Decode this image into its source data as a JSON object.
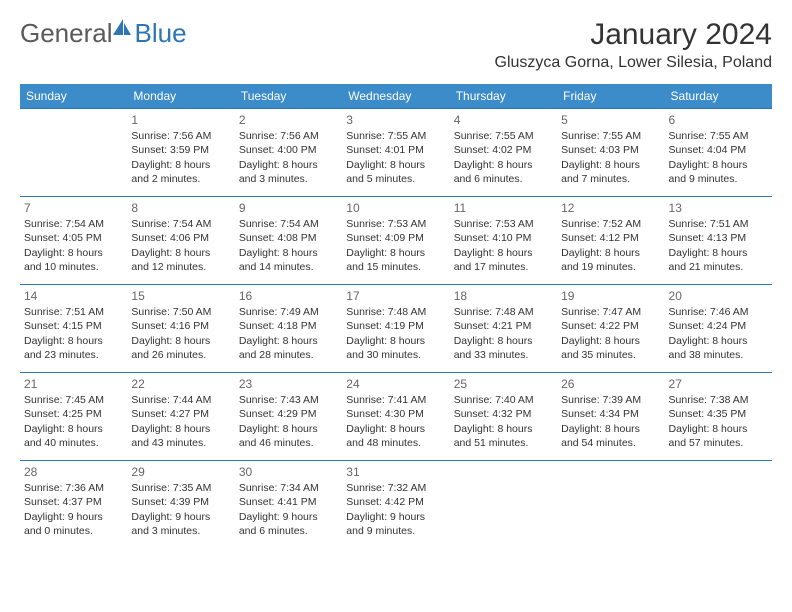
{
  "logo": {
    "text1": "General",
    "text2": "Blue"
  },
  "title": "January 2024",
  "location": "Gluszyca Gorna, Lower Silesia, Poland",
  "weekdays": [
    "Sunday",
    "Monday",
    "Tuesday",
    "Wednesday",
    "Thursday",
    "Friday",
    "Saturday"
  ],
  "colors": {
    "header_bg": "#3c8cc9",
    "header_text": "#ffffff",
    "border": "#2e75b6",
    "logo_gray": "#5a5a5a",
    "logo_blue": "#2e75b6",
    "body_text": "#333333",
    "daynum": "#666666",
    "page_bg": "#ffffff"
  },
  "typography": {
    "base_font": "Arial",
    "title_size_pt": 22,
    "location_size_pt": 12,
    "weekday_size_pt": 9,
    "cell_size_pt": 8
  },
  "layout": {
    "columns": 7,
    "rows": 5,
    "first_weekday_index": 1
  },
  "days": [
    {
      "n": "1",
      "sunrise": "Sunrise: 7:56 AM",
      "sunset": "Sunset: 3:59 PM",
      "day1": "Daylight: 8 hours",
      "day2": "and 2 minutes."
    },
    {
      "n": "2",
      "sunrise": "Sunrise: 7:56 AM",
      "sunset": "Sunset: 4:00 PM",
      "day1": "Daylight: 8 hours",
      "day2": "and 3 minutes."
    },
    {
      "n": "3",
      "sunrise": "Sunrise: 7:55 AM",
      "sunset": "Sunset: 4:01 PM",
      "day1": "Daylight: 8 hours",
      "day2": "and 5 minutes."
    },
    {
      "n": "4",
      "sunrise": "Sunrise: 7:55 AM",
      "sunset": "Sunset: 4:02 PM",
      "day1": "Daylight: 8 hours",
      "day2": "and 6 minutes."
    },
    {
      "n": "5",
      "sunrise": "Sunrise: 7:55 AM",
      "sunset": "Sunset: 4:03 PM",
      "day1": "Daylight: 8 hours",
      "day2": "and 7 minutes."
    },
    {
      "n": "6",
      "sunrise": "Sunrise: 7:55 AM",
      "sunset": "Sunset: 4:04 PM",
      "day1": "Daylight: 8 hours",
      "day2": "and 9 minutes."
    },
    {
      "n": "7",
      "sunrise": "Sunrise: 7:54 AM",
      "sunset": "Sunset: 4:05 PM",
      "day1": "Daylight: 8 hours",
      "day2": "and 10 minutes."
    },
    {
      "n": "8",
      "sunrise": "Sunrise: 7:54 AM",
      "sunset": "Sunset: 4:06 PM",
      "day1": "Daylight: 8 hours",
      "day2": "and 12 minutes."
    },
    {
      "n": "9",
      "sunrise": "Sunrise: 7:54 AM",
      "sunset": "Sunset: 4:08 PM",
      "day1": "Daylight: 8 hours",
      "day2": "and 14 minutes."
    },
    {
      "n": "10",
      "sunrise": "Sunrise: 7:53 AM",
      "sunset": "Sunset: 4:09 PM",
      "day1": "Daylight: 8 hours",
      "day2": "and 15 minutes."
    },
    {
      "n": "11",
      "sunrise": "Sunrise: 7:53 AM",
      "sunset": "Sunset: 4:10 PM",
      "day1": "Daylight: 8 hours",
      "day2": "and 17 minutes."
    },
    {
      "n": "12",
      "sunrise": "Sunrise: 7:52 AM",
      "sunset": "Sunset: 4:12 PM",
      "day1": "Daylight: 8 hours",
      "day2": "and 19 minutes."
    },
    {
      "n": "13",
      "sunrise": "Sunrise: 7:51 AM",
      "sunset": "Sunset: 4:13 PM",
      "day1": "Daylight: 8 hours",
      "day2": "and 21 minutes."
    },
    {
      "n": "14",
      "sunrise": "Sunrise: 7:51 AM",
      "sunset": "Sunset: 4:15 PM",
      "day1": "Daylight: 8 hours",
      "day2": "and 23 minutes."
    },
    {
      "n": "15",
      "sunrise": "Sunrise: 7:50 AM",
      "sunset": "Sunset: 4:16 PM",
      "day1": "Daylight: 8 hours",
      "day2": "and 26 minutes."
    },
    {
      "n": "16",
      "sunrise": "Sunrise: 7:49 AM",
      "sunset": "Sunset: 4:18 PM",
      "day1": "Daylight: 8 hours",
      "day2": "and 28 minutes."
    },
    {
      "n": "17",
      "sunrise": "Sunrise: 7:48 AM",
      "sunset": "Sunset: 4:19 PM",
      "day1": "Daylight: 8 hours",
      "day2": "and 30 minutes."
    },
    {
      "n": "18",
      "sunrise": "Sunrise: 7:48 AM",
      "sunset": "Sunset: 4:21 PM",
      "day1": "Daylight: 8 hours",
      "day2": "and 33 minutes."
    },
    {
      "n": "19",
      "sunrise": "Sunrise: 7:47 AM",
      "sunset": "Sunset: 4:22 PM",
      "day1": "Daylight: 8 hours",
      "day2": "and 35 minutes."
    },
    {
      "n": "20",
      "sunrise": "Sunrise: 7:46 AM",
      "sunset": "Sunset: 4:24 PM",
      "day1": "Daylight: 8 hours",
      "day2": "and 38 minutes."
    },
    {
      "n": "21",
      "sunrise": "Sunrise: 7:45 AM",
      "sunset": "Sunset: 4:25 PM",
      "day1": "Daylight: 8 hours",
      "day2": "and 40 minutes."
    },
    {
      "n": "22",
      "sunrise": "Sunrise: 7:44 AM",
      "sunset": "Sunset: 4:27 PM",
      "day1": "Daylight: 8 hours",
      "day2": "and 43 minutes."
    },
    {
      "n": "23",
      "sunrise": "Sunrise: 7:43 AM",
      "sunset": "Sunset: 4:29 PM",
      "day1": "Daylight: 8 hours",
      "day2": "and 46 minutes."
    },
    {
      "n": "24",
      "sunrise": "Sunrise: 7:41 AM",
      "sunset": "Sunset: 4:30 PM",
      "day1": "Daylight: 8 hours",
      "day2": "and 48 minutes."
    },
    {
      "n": "25",
      "sunrise": "Sunrise: 7:40 AM",
      "sunset": "Sunset: 4:32 PM",
      "day1": "Daylight: 8 hours",
      "day2": "and 51 minutes."
    },
    {
      "n": "26",
      "sunrise": "Sunrise: 7:39 AM",
      "sunset": "Sunset: 4:34 PM",
      "day1": "Daylight: 8 hours",
      "day2": "and 54 minutes."
    },
    {
      "n": "27",
      "sunrise": "Sunrise: 7:38 AM",
      "sunset": "Sunset: 4:35 PM",
      "day1": "Daylight: 8 hours",
      "day2": "and 57 minutes."
    },
    {
      "n": "28",
      "sunrise": "Sunrise: 7:36 AM",
      "sunset": "Sunset: 4:37 PM",
      "day1": "Daylight: 9 hours",
      "day2": "and 0 minutes."
    },
    {
      "n": "29",
      "sunrise": "Sunrise: 7:35 AM",
      "sunset": "Sunset: 4:39 PM",
      "day1": "Daylight: 9 hours",
      "day2": "and 3 minutes."
    },
    {
      "n": "30",
      "sunrise": "Sunrise: 7:34 AM",
      "sunset": "Sunset: 4:41 PM",
      "day1": "Daylight: 9 hours",
      "day2": "and 6 minutes."
    },
    {
      "n": "31",
      "sunrise": "Sunrise: 7:32 AM",
      "sunset": "Sunset: 4:42 PM",
      "day1": "Daylight: 9 hours",
      "day2": "and 9 minutes."
    }
  ]
}
